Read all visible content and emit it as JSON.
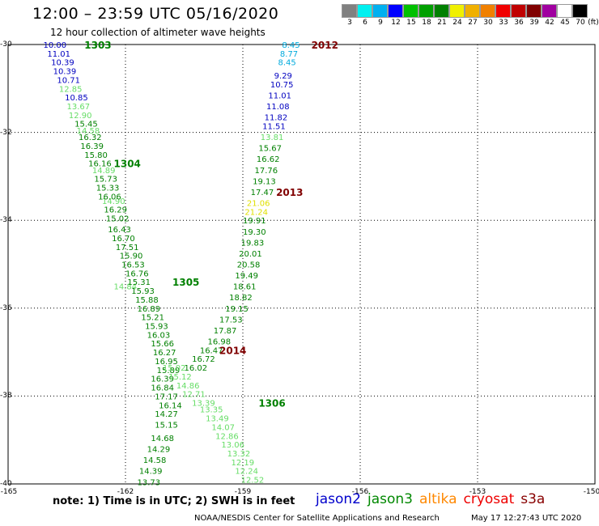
{
  "header": {
    "title": "12:00 – 23:59 UTC 05/16/2020",
    "subtitle": "12 hour collection of altimeter wave heights"
  },
  "color_scale": {
    "labels": [
      "3",
      "6",
      "9",
      "12",
      "15",
      "18",
      "21",
      "24",
      "27",
      "30",
      "33",
      "36",
      "39",
      "42",
      "45",
      "70"
    ],
    "unit": "(ft)",
    "colors": [
      "#808080",
      "#00f0f0",
      "#00b0f0",
      "#0000ff",
      "#00c000",
      "#00a000",
      "#008000",
      "#f0f000",
      "#f0b000",
      "#f08000",
      "#f00000",
      "#c00000",
      "#800000",
      "#a000a0",
      "#ffffff",
      "#000000"
    ]
  },
  "axes": {
    "x_ticks": [
      "-165",
      "-162",
      "-159",
      "-156",
      "-153",
      "-150"
    ],
    "y_ticks": [
      "-30",
      "-32",
      "-34",
      "-36",
      "-38",
      "-40"
    ]
  },
  "chart_data": {
    "type": "scatter",
    "xlim": [
      -165,
      -150
    ],
    "ylim": [
      -40,
      -30
    ],
    "grid": true,
    "series": [
      {
        "color": "#0000c0",
        "points": [
          {
            "x": -164.1,
            "y": -30.0,
            "v": "10.00"
          },
          {
            "x": -164.0,
            "y": -30.2,
            "v": "11.01"
          },
          {
            "x": -163.9,
            "y": -30.4,
            "v": "10.39"
          },
          {
            "x": -163.85,
            "y": -30.6,
            "v": "10.39"
          },
          {
            "x": -163.75,
            "y": -30.8,
            "v": "10.71"
          },
          {
            "x": -163.55,
            "y": -31.2,
            "v": "10.85"
          }
        ]
      },
      {
        "color": "#66dd66",
        "points": [
          {
            "x": -163.7,
            "y": -31.0,
            "v": "12.85"
          },
          {
            "x": -163.5,
            "y": -31.4,
            "v": "13.67"
          },
          {
            "x": -163.45,
            "y": -31.6,
            "v": "12.90"
          },
          {
            "x": -163.25,
            "y": -31.95,
            "v": "14.58"
          },
          {
            "x": -162.85,
            "y": -32.85,
            "v": "14.89"
          },
          {
            "x": -162.6,
            "y": -33.55,
            "v": "14.90"
          },
          {
            "x": -162.3,
            "y": -35.5,
            "v": "14.84"
          }
        ]
      },
      {
        "color": "#008000",
        "points": [
          {
            "x": -163.3,
            "y": -31.8,
            "v": "15.45"
          },
          {
            "x": -163.2,
            "y": -32.1,
            "v": "16.32"
          },
          {
            "x": -163.15,
            "y": -32.3,
            "v": "16.39"
          },
          {
            "x": -163.05,
            "y": -32.5,
            "v": "15.80"
          },
          {
            "x": -162.95,
            "y": -32.7,
            "v": "16.16"
          },
          {
            "x": -162.8,
            "y": -33.05,
            "v": "15.73"
          },
          {
            "x": -162.75,
            "y": -33.25,
            "v": "15.33"
          },
          {
            "x": -162.7,
            "y": -33.45,
            "v": "16.06"
          },
          {
            "x": -162.55,
            "y": -33.75,
            "v": "16.29"
          },
          {
            "x": -162.5,
            "y": -33.95,
            "v": "15.02"
          },
          {
            "x": -162.45,
            "y": -34.2,
            "v": "16.43"
          },
          {
            "x": -162.35,
            "y": -34.4,
            "v": "16.70"
          },
          {
            "x": -162.25,
            "y": -34.6,
            "v": "17.51"
          },
          {
            "x": -162.15,
            "y": -34.8,
            "v": "15.90"
          },
          {
            "x": -162.1,
            "y": -35.0,
            "v": "16.53"
          },
          {
            "x": -162.0,
            "y": -35.2,
            "v": "16.76"
          },
          {
            "x": -161.95,
            "y": -35.4,
            "v": "15.31"
          },
          {
            "x": -161.85,
            "y": -35.6,
            "v": "15.93"
          },
          {
            "x": -161.75,
            "y": -35.8,
            "v": "15.88"
          },
          {
            "x": -161.7,
            "y": -36.0,
            "v": "16.89"
          },
          {
            "x": -161.6,
            "y": -36.2,
            "v": "15.21"
          },
          {
            "x": -161.5,
            "y": -36.4,
            "v": "15.93"
          },
          {
            "x": -161.45,
            "y": -36.6,
            "v": "16.03"
          },
          {
            "x": -161.35,
            "y": -36.8,
            "v": "15.66"
          },
          {
            "x": -161.3,
            "y": -37.0,
            "v": "16.27"
          },
          {
            "x": -161.25,
            "y": -37.2,
            "v": "16.95"
          },
          {
            "x": -161.2,
            "y": -37.4,
            "v": "15.89"
          },
          {
            "x": -161.35,
            "y": -37.6,
            "v": "16.39"
          },
          {
            "x": -161.35,
            "y": -37.8,
            "v": "16.84"
          },
          {
            "x": -161.25,
            "y": -38.0,
            "v": "17.17"
          },
          {
            "x": -161.15,
            "y": -38.2,
            "v": "16.14"
          },
          {
            "x": -161.25,
            "y": -38.4,
            "v": "14.27"
          },
          {
            "x": -161.25,
            "y": -38.65,
            "v": "15.15"
          },
          {
            "x": -161.35,
            "y": -38.95,
            "v": "14.68"
          },
          {
            "x": -161.45,
            "y": -39.2,
            "v": "14.29"
          },
          {
            "x": -161.55,
            "y": -39.45,
            "v": "14.58"
          },
          {
            "x": -161.65,
            "y": -39.7,
            "v": "14.39"
          },
          {
            "x": -161.7,
            "y": -39.95,
            "v": "13.73"
          }
        ]
      },
      {
        "color": "#66dd66",
        "points": [
          {
            "x": -161.05,
            "y": -37.35,
            "v": "15.02"
          },
          {
            "x": -160.9,
            "y": -37.55,
            "v": "15.12"
          },
          {
            "x": -160.7,
            "y": -37.75,
            "v": "14.86"
          },
          {
            "x": -160.55,
            "y": -37.95,
            "v": "12.71"
          },
          {
            "x": -160.3,
            "y": -38.15,
            "v": "13.39"
          },
          {
            "x": -160.1,
            "y": -38.3,
            "v": "13.35"
          },
          {
            "x": -159.95,
            "y": -38.5,
            "v": "13.49"
          },
          {
            "x": -159.8,
            "y": -38.7,
            "v": "14.07"
          },
          {
            "x": -159.7,
            "y": -38.9,
            "v": "12.86"
          },
          {
            "x": -159.55,
            "y": -39.1,
            "v": "13.06"
          },
          {
            "x": -159.4,
            "y": -39.3,
            "v": "13.32"
          },
          {
            "x": -159.3,
            "y": -39.5,
            "v": "12.19"
          },
          {
            "x": -159.2,
            "y": -39.7,
            "v": "12.24"
          },
          {
            "x": -159.05,
            "y": -39.9,
            "v": "12.52"
          }
        ]
      },
      {
        "color": "#00aadd",
        "points": [
          {
            "x": -158.0,
            "y": -30.0,
            "v": "8.45"
          },
          {
            "x": -158.05,
            "y": -30.2,
            "v": "8.77"
          },
          {
            "x": -158.1,
            "y": -30.4,
            "v": "8.45"
          }
        ]
      },
      {
        "color": "#0000c0",
        "points": [
          {
            "x": -158.2,
            "y": -30.7,
            "v": "9.29"
          },
          {
            "x": -158.3,
            "y": -30.9,
            "v": "10.75"
          },
          {
            "x": -158.35,
            "y": -31.15,
            "v": "11.01"
          },
          {
            "x": -158.4,
            "y": -31.4,
            "v": "11.08"
          },
          {
            "x": -158.45,
            "y": -31.65,
            "v": "11.82"
          },
          {
            "x": -158.5,
            "y": -31.85,
            "v": "11.51"
          }
        ]
      },
      {
        "color": "#66dd66",
        "points": [
          {
            "x": -158.55,
            "y": -32.1,
            "v": "13.81"
          }
        ]
      },
      {
        "color": "#008000",
        "points": [
          {
            "x": -158.6,
            "y": -32.35,
            "v": "15.67"
          },
          {
            "x": -158.65,
            "y": -32.6,
            "v": "16.62"
          },
          {
            "x": -158.7,
            "y": -32.85,
            "v": "17.76"
          },
          {
            "x": -158.75,
            "y": -33.1,
            "v": "19.13"
          },
          {
            "x": -158.8,
            "y": -33.35,
            "v": "17.47"
          },
          {
            "x": -159.0,
            "y": -34.0,
            "v": "19.91"
          },
          {
            "x": -159.0,
            "y": -34.25,
            "v": "19.30"
          },
          {
            "x": -159.05,
            "y": -34.5,
            "v": "19.83"
          },
          {
            "x": -159.1,
            "y": -34.75,
            "v": "20.01"
          },
          {
            "x": -159.15,
            "y": -35.0,
            "v": "20.58"
          },
          {
            "x": -159.2,
            "y": -35.25,
            "v": "19.49"
          },
          {
            "x": -159.25,
            "y": -35.5,
            "v": "18.61"
          },
          {
            "x": -159.35,
            "y": -35.75,
            "v": "18.82"
          },
          {
            "x": -159.45,
            "y": -36.0,
            "v": "19.15"
          },
          {
            "x": -159.6,
            "y": -36.25,
            "v": "17.53"
          },
          {
            "x": -159.75,
            "y": -36.5,
            "v": "17.87"
          },
          {
            "x": -159.9,
            "y": -36.75,
            "v": "16.98"
          },
          {
            "x": -160.1,
            "y": -36.95,
            "v": "16.47"
          },
          {
            "x": -160.3,
            "y": -37.15,
            "v": "16.72"
          },
          {
            "x": -160.5,
            "y": -37.35,
            "v": "16.02"
          }
        ]
      },
      {
        "color": "#e0e000",
        "points": [
          {
            "x": -158.9,
            "y": -33.6,
            "v": "21.06"
          },
          {
            "x": -158.95,
            "y": -33.8,
            "v": "21.24"
          }
        ]
      }
    ],
    "track_labels": [
      {
        "x": -163.05,
        "y": -30.0,
        "text": "1303",
        "color": "#008000"
      },
      {
        "x": -162.3,
        "y": -32.7,
        "text": "1304",
        "color": "#008000"
      },
      {
        "x": -160.8,
        "y": -35.4,
        "text": "1305",
        "color": "#008000"
      },
      {
        "x": -158.6,
        "y": -38.15,
        "text": "1306",
        "color": "#008000"
      },
      {
        "x": -157.25,
        "y": -30.0,
        "text": "2012",
        "color": "#800000"
      },
      {
        "x": -158.15,
        "y": -33.35,
        "text": "2013",
        "color": "#800000"
      },
      {
        "x": -159.6,
        "y": -36.95,
        "text": "2014",
        "color": "#800000"
      }
    ]
  },
  "footer": {
    "note": "note:  1) Time is in UTC;  2) SWH is in feet",
    "satellites": [
      {
        "name": "jason2",
        "color": "#0000cc"
      },
      {
        "name": "jason3",
        "color": "#008800"
      },
      {
        "name": "altika",
        "color": "#ff8800"
      },
      {
        "name": "cryosat",
        "color": "#ee0000"
      },
      {
        "name": "s3a",
        "color": "#880000"
      }
    ],
    "credit": "NOAA/NESDIS Center for Satellite Applications and Research",
    "timestamp": "May 17 12:27:43 UTC 2020"
  }
}
